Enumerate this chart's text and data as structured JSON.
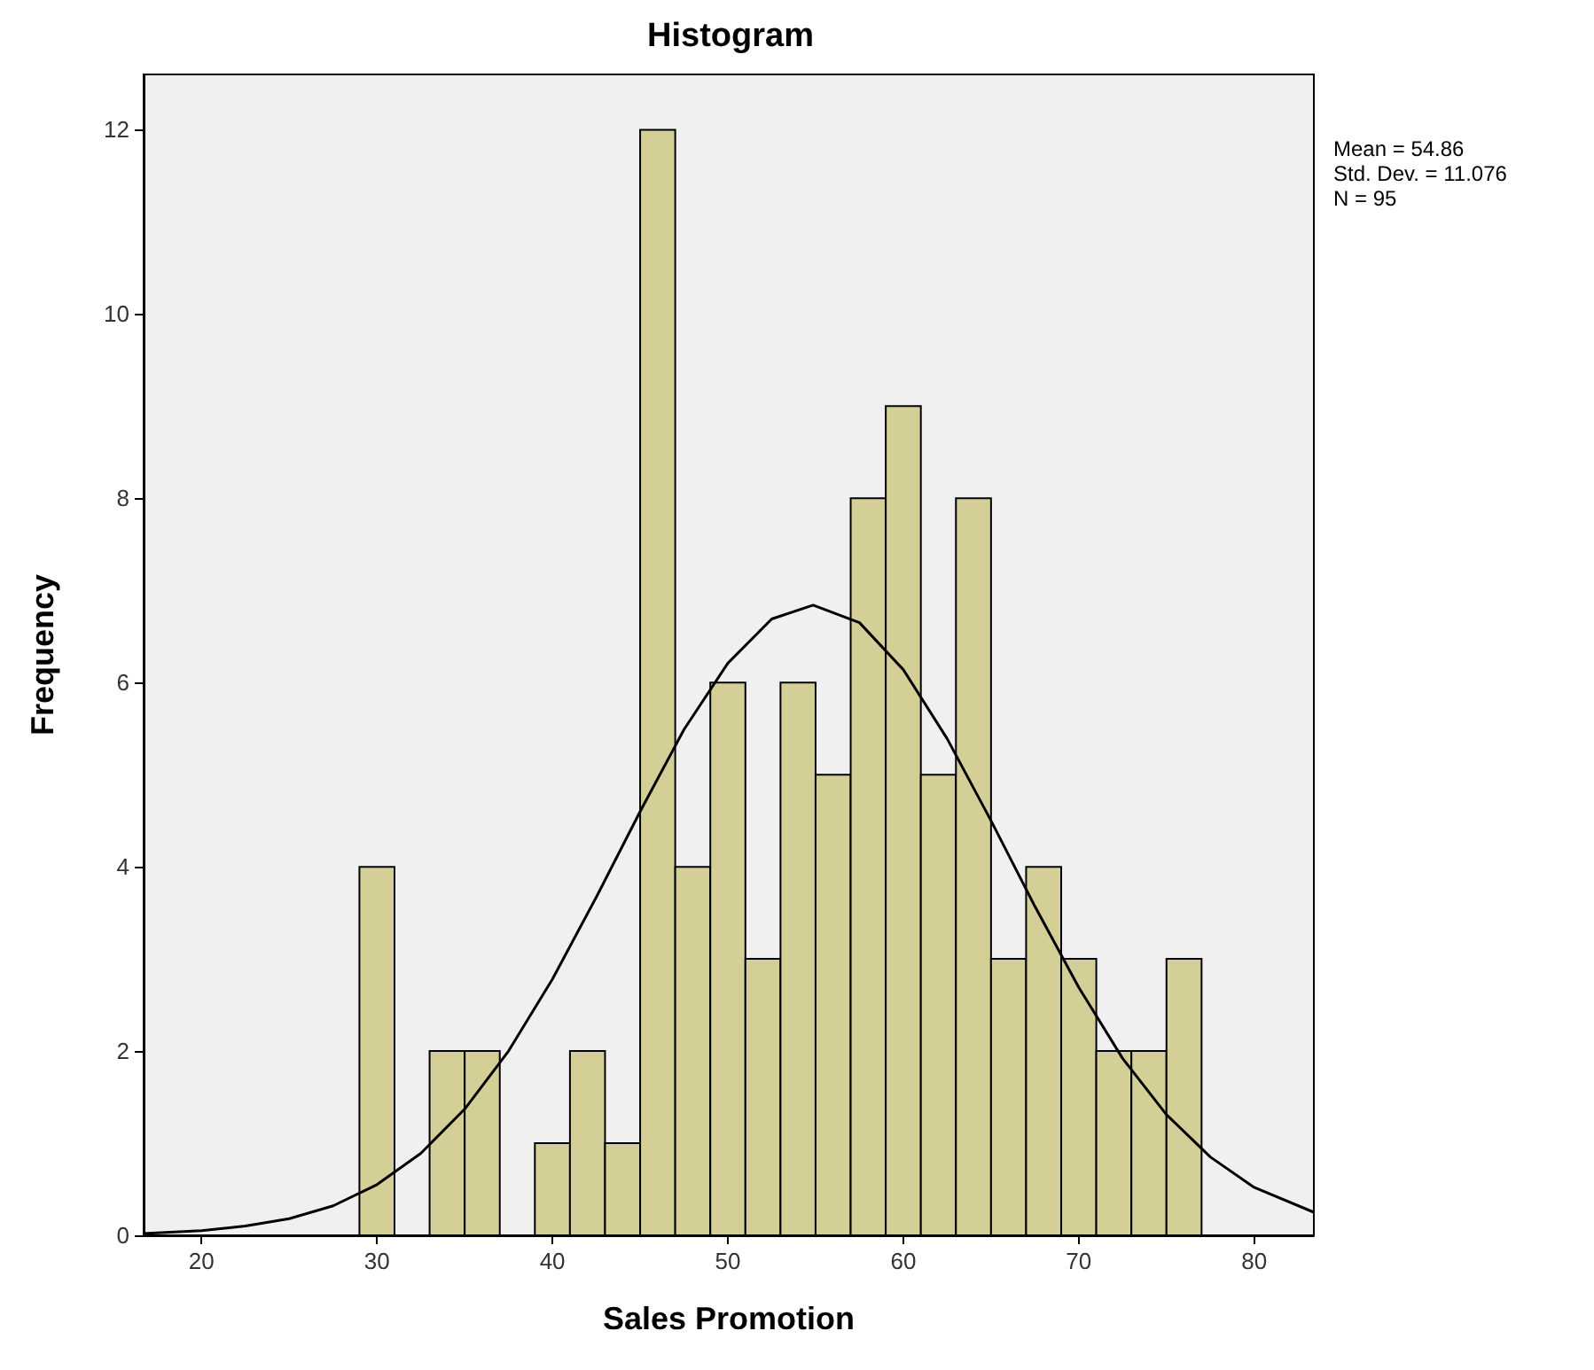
{
  "chart_data": {
    "type": "histogram",
    "title": "Histogram",
    "xlabel": "Sales Promotion",
    "ylabel": "Frequency",
    "bins": [
      29,
      31,
      33,
      35,
      37,
      39,
      41,
      43,
      45,
      47,
      49,
      51,
      53,
      55,
      57,
      59,
      61,
      63,
      65,
      67,
      69,
      71,
      73,
      75,
      77
    ],
    "values": [
      4,
      0,
      2,
      2,
      0,
      1,
      2,
      1,
      12,
      4,
      6,
      3,
      6,
      5,
      8,
      9,
      5,
      8,
      3,
      4,
      3,
      2,
      2,
      3
    ],
    "color": "#d3cf97",
    "series": [
      {
        "type": "line",
        "color": "#000000",
        "x": [
          16.7,
          20,
          22.5,
          25,
          27.5,
          30,
          32.5,
          35,
          37.5,
          40,
          42.5,
          45,
          47.5,
          50,
          52.5,
          54.86,
          57.5,
          60,
          62.5,
          65,
          67.5,
          70,
          72.5,
          75,
          77.5,
          80,
          83.4
        ],
        "values": [
          0.02,
          0.05,
          0.1,
          0.18,
          0.32,
          0.55,
          0.89,
          1.37,
          2.0,
          2.78,
          3.67,
          4.6,
          5.49,
          6.21,
          6.69,
          6.84,
          6.65,
          6.14,
          5.39,
          4.5,
          3.57,
          2.69,
          1.92,
          1.31,
          0.85,
          0.52,
          0.25
        ]
      }
    ],
    "xlim": [
      16.7,
      83.4
    ],
    "xticks": [
      20,
      30,
      40,
      50,
      60,
      70,
      80
    ],
    "ylim": [
      0,
      12.6
    ],
    "yticks": [
      0,
      2,
      4,
      6,
      8,
      10,
      12
    ],
    "grid": false,
    "marker": "none",
    "line_style": "solid",
    "annotations": [
      "Mean = 54.86",
      "Std. Dev. = 11.076",
      "N = 95"
    ]
  }
}
